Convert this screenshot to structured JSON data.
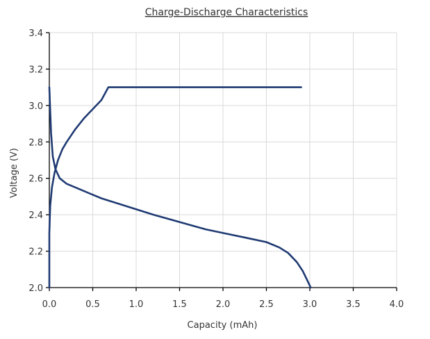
{
  "chart_data": {
    "type": "line",
    "title": "Charge-Discharge Characteristics",
    "xlabel": "Capacity (mAh)",
    "ylabel": "Voltage (V)",
    "xlim": [
      0.0,
      4.0
    ],
    "ylim": [
      2.0,
      3.4
    ],
    "x_ticks": [
      "0.0",
      "0.5",
      "1.0",
      "1.5",
      "2.0",
      "2.5",
      "3.0",
      "3.5",
      "4.0"
    ],
    "y_ticks": [
      "2.0",
      "2.2",
      "2.4",
      "2.6",
      "2.8",
      "3.0",
      "3.2",
      "3.4"
    ],
    "grid": true,
    "line_color": "#1f3a73",
    "series": [
      {
        "points": [
          [
            0.0,
            2.0
          ],
          [
            0.0,
            2.3
          ],
          [
            0.01,
            2.45
          ],
          [
            0.03,
            2.55
          ],
          [
            0.06,
            2.63
          ],
          [
            0.1,
            2.7
          ],
          [
            0.15,
            2.76
          ],
          [
            0.2,
            2.8
          ],
          [
            0.3,
            2.87
          ],
          [
            0.4,
            2.93
          ],
          [
            0.5,
            2.98
          ],
          [
            0.6,
            3.03
          ],
          [
            0.68,
            3.1
          ],
          [
            0.75,
            3.1
          ],
          [
            0.85,
            3.1
          ],
          [
            1.0,
            3.1
          ],
          [
            1.5,
            3.1
          ],
          [
            2.0,
            3.1
          ],
          [
            2.5,
            3.1
          ],
          [
            2.9,
            3.1
          ]
        ]
      },
      {
        "points": [
          [
            0.0,
            3.1
          ],
          [
            0.02,
            2.85
          ],
          [
            0.04,
            2.72
          ],
          [
            0.07,
            2.65
          ],
          [
            0.12,
            2.6
          ],
          [
            0.2,
            2.57
          ],
          [
            0.4,
            2.53
          ],
          [
            0.6,
            2.49
          ],
          [
            0.8,
            2.46
          ],
          [
            1.0,
            2.43
          ],
          [
            1.2,
            2.4
          ],
          [
            1.5,
            2.36
          ],
          [
            1.8,
            2.32
          ],
          [
            2.0,
            2.3
          ],
          [
            2.3,
            2.27
          ],
          [
            2.5,
            2.25
          ],
          [
            2.65,
            2.22
          ],
          [
            2.75,
            2.19
          ],
          [
            2.85,
            2.14
          ],
          [
            2.92,
            2.09
          ],
          [
            2.97,
            2.04
          ],
          [
            3.01,
            2.0
          ]
        ]
      }
    ]
  }
}
